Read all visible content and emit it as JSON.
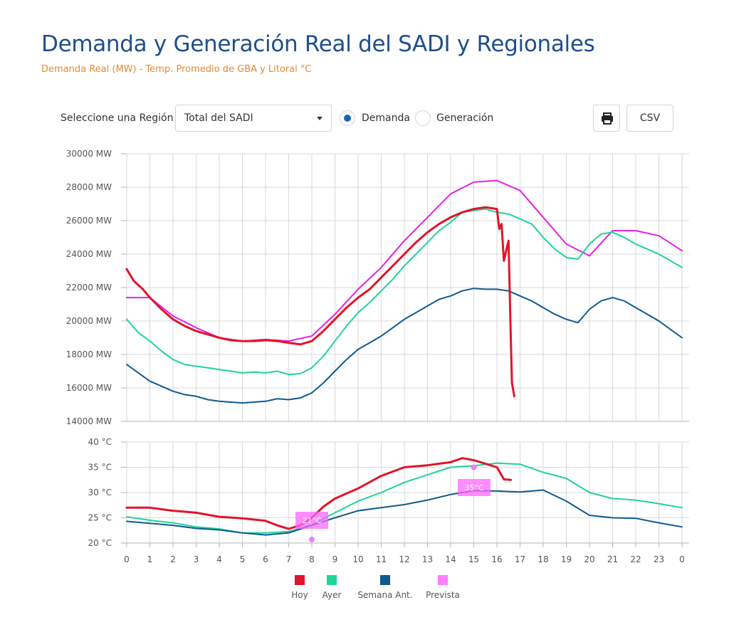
{
  "header": {
    "title": "Demanda y Generación Real del SADI y Regionales",
    "subtitle": "Demanda Real (MW) - Temp. Promedio de GBA y Litoral °C"
  },
  "controls": {
    "region_label": "Seleccione una Región",
    "region_value": "Total del SADI",
    "radio_demand": "Demanda",
    "radio_generation": "Generación",
    "selected": "Demanda",
    "print_icon": "printer-icon",
    "csv_label": "CSV"
  },
  "colors": {
    "hoy": "#e0142a",
    "ayer": "#1ed49a",
    "semana": "#0f5a8f",
    "prevista": "#e51fe5",
    "prevista_legend": "#ff80ff",
    "axis_text": "#555555",
    "grid": "#d9d9d9"
  },
  "chart_data": [
    {
      "type": "line",
      "title": "",
      "ylim": [
        14000,
        30000
      ],
      "y_ticks": [
        14000,
        16000,
        18000,
        20000,
        22000,
        24000,
        26000,
        28000,
        30000
      ],
      "y_tick_labels": [
        "14000 MW",
        "16000 MW",
        "18000 MW",
        "20000 MW",
        "22000 MW",
        "24000 MW",
        "26000 MW",
        "28000 MW",
        "30000 MW"
      ],
      "grid": true,
      "series": [
        {
          "name": "Prevista",
          "x": [
            0,
            1,
            2,
            3,
            4,
            5,
            6,
            7,
            8,
            9,
            10,
            11,
            12,
            13,
            14,
            15,
            16,
            17,
            18,
            19,
            20,
            21,
            22,
            23,
            24
          ],
          "y": [
            21400,
            21400,
            20300,
            19600,
            19000,
            18800,
            18900,
            18800,
            19100,
            20400,
            21900,
            23200,
            24800,
            26200,
            27600,
            28300,
            28400,
            27800,
            26200,
            24600,
            23900,
            25400,
            25400,
            25100,
            24200
          ]
        },
        {
          "name": "Ayer",
          "x": [
            0,
            0.5,
            1,
            1.5,
            2,
            2.5,
            3,
            3.5,
            4,
            4.5,
            5,
            5.5,
            6,
            6.5,
            7,
            7.5,
            8,
            8.5,
            9,
            9.5,
            10,
            10.5,
            11,
            11.5,
            12,
            12.5,
            13,
            13.5,
            14,
            14.5,
            15,
            15.5,
            16,
            16.5,
            17,
            17.5,
            18,
            18.5,
            19,
            19.5,
            20,
            20.5,
            21,
            21.5,
            22,
            22.5,
            23,
            23.5,
            24
          ],
          "y": [
            20100,
            19300,
            18800,
            18200,
            17700,
            17400,
            17300,
            17200,
            17100,
            17000,
            16900,
            16950,
            16900,
            17000,
            16800,
            16850,
            17200,
            17900,
            18800,
            19700,
            20500,
            21100,
            21800,
            22500,
            23300,
            24000,
            24700,
            25400,
            25900,
            26500,
            26600,
            26700,
            26500,
            26400,
            26100,
            25800,
            25000,
            24300,
            23800,
            23700,
            24600,
            25200,
            25300,
            25000,
            24600,
            24300,
            24000,
            23600,
            23200
          ]
        },
        {
          "name": "Semana Ant.",
          "x": [
            0,
            0.5,
            1,
            1.5,
            2,
            2.5,
            3,
            3.5,
            4,
            4.5,
            5,
            5.5,
            6,
            6.5,
            7,
            7.5,
            8,
            8.5,
            9,
            9.5,
            10,
            10.5,
            11,
            11.5,
            12,
            12.5,
            13,
            13.5,
            14,
            14.5,
            15,
            15.5,
            16,
            16.5,
            17,
            17.5,
            18,
            18.5,
            19,
            19.5,
            20,
            20.5,
            21,
            21.5,
            22,
            22.5,
            23,
            23.5,
            24
          ],
          "y": [
            17400,
            16900,
            16400,
            16100,
            15800,
            15600,
            15500,
            15300,
            15200,
            15150,
            15100,
            15150,
            15200,
            15350,
            15300,
            15400,
            15700,
            16300,
            17000,
            17700,
            18300,
            18700,
            19100,
            19600,
            20100,
            20500,
            20900,
            21300,
            21500,
            21800,
            21950,
            21900,
            21900,
            21800,
            21500,
            21200,
            20800,
            20400,
            20100,
            19900,
            20700,
            21200,
            21400,
            21200,
            20800,
            20400,
            20000,
            19500,
            19000
          ]
        },
        {
          "name": "Hoy",
          "x": [
            0,
            0.3,
            0.7,
            1,
            1.5,
            2,
            2.5,
            3,
            3.5,
            4,
            4.5,
            5,
            5.5,
            6,
            6.5,
            7,
            7.5,
            8,
            8.5,
            9,
            9.5,
            10,
            10.5,
            11,
            11.5,
            12,
            12.5,
            13,
            13.5,
            14,
            14.5,
            15,
            15.5,
            16,
            16.1,
            16.2,
            16.3,
            16.4,
            16.5,
            16.6,
            16.65,
            16.75
          ],
          "y": [
            23100,
            22400,
            21900,
            21400,
            20700,
            20100,
            19700,
            19400,
            19200,
            19000,
            18850,
            18800,
            18800,
            18850,
            18800,
            18700,
            18600,
            18800,
            19400,
            20100,
            20800,
            21400,
            21900,
            22600,
            23300,
            24000,
            24700,
            25300,
            25800,
            26200,
            26500,
            26700,
            26800,
            26700,
            25500,
            25800,
            23600,
            24200,
            24800,
            19000,
            16300,
            15500
          ]
        }
      ]
    },
    {
      "type": "line",
      "title": "",
      "ylim": [
        20,
        40
      ],
      "y_ticks": [
        20,
        25,
        30,
        35,
        40
      ],
      "y_tick_labels": [
        "20 °C",
        "25 °C",
        "30 °C",
        "35 °C",
        "40 °C"
      ],
      "xlim": [
        0,
        24
      ],
      "x_tick_labels": [
        "0",
        "1",
        "2",
        "3",
        "4",
        "5",
        "6",
        "7",
        "8",
        "9",
        "10",
        "11",
        "12",
        "13",
        "14",
        "15",
        "16",
        "17",
        "18",
        "19",
        "20",
        "21",
        "22",
        "23",
        "0"
      ],
      "grid": true,
      "series": [
        {
          "name": "Ayer",
          "x": [
            0,
            1,
            2,
            3,
            4,
            5,
            6,
            7,
            8,
            9,
            10,
            11,
            12,
            13,
            14,
            15,
            16,
            17,
            18,
            19,
            20,
            21,
            22,
            23,
            24
          ],
          "y": [
            25.2,
            24.5,
            24.0,
            23.2,
            22.8,
            22.0,
            22.0,
            22.3,
            23.6,
            26.0,
            28.3,
            30.0,
            32.0,
            33.5,
            35.0,
            35.3,
            35.8,
            35.6,
            34.0,
            32.8,
            30.0,
            28.8,
            28.5,
            27.8,
            27.0
          ]
        },
        {
          "name": "Semana Ant.",
          "x": [
            0,
            1,
            2,
            3,
            4,
            5,
            6,
            7,
            8,
            9,
            10,
            11,
            12,
            13,
            14,
            15,
            16,
            17,
            18,
            19,
            20,
            21,
            22,
            23,
            24
          ],
          "y": [
            24.3,
            23.9,
            23.5,
            22.9,
            22.6,
            22.0,
            21.6,
            22.0,
            23.5,
            25.0,
            26.4,
            27.0,
            27.6,
            28.5,
            29.6,
            30.4,
            30.3,
            30.1,
            30.5,
            28.3,
            25.5,
            25.0,
            24.9,
            24.0,
            23.2
          ]
        },
        {
          "name": "Hoy",
          "x": [
            0,
            1,
            2,
            3,
            4,
            5,
            6,
            6.5,
            7,
            7.5,
            8,
            8.5,
            9,
            10,
            11,
            12,
            13,
            14,
            14.5,
            15,
            16,
            16.3,
            16.6
          ],
          "y": [
            27.0,
            27.0,
            26.4,
            26.0,
            25.2,
            24.9,
            24.4,
            23.5,
            22.8,
            23.5,
            25.0,
            27.2,
            28.8,
            30.8,
            33.3,
            35.0,
            35.4,
            36.0,
            36.8,
            36.4,
            35.0,
            32.6,
            32.5
          ]
        }
      ],
      "prevista_points": [
        {
          "x": 8,
          "y": 20.7,
          "label": "21°C"
        },
        {
          "x": 15,
          "y": 35.0,
          "label": "35°C"
        }
      ]
    }
  ],
  "legend": [
    {
      "name": "Hoy",
      "color": "#e0142a"
    },
    {
      "name": "Ayer",
      "color": "#1ed49a"
    },
    {
      "name": "Semana Ant.",
      "color": "#0f5a8f"
    },
    {
      "name": "Prevista",
      "color": "#ff80ff"
    }
  ]
}
